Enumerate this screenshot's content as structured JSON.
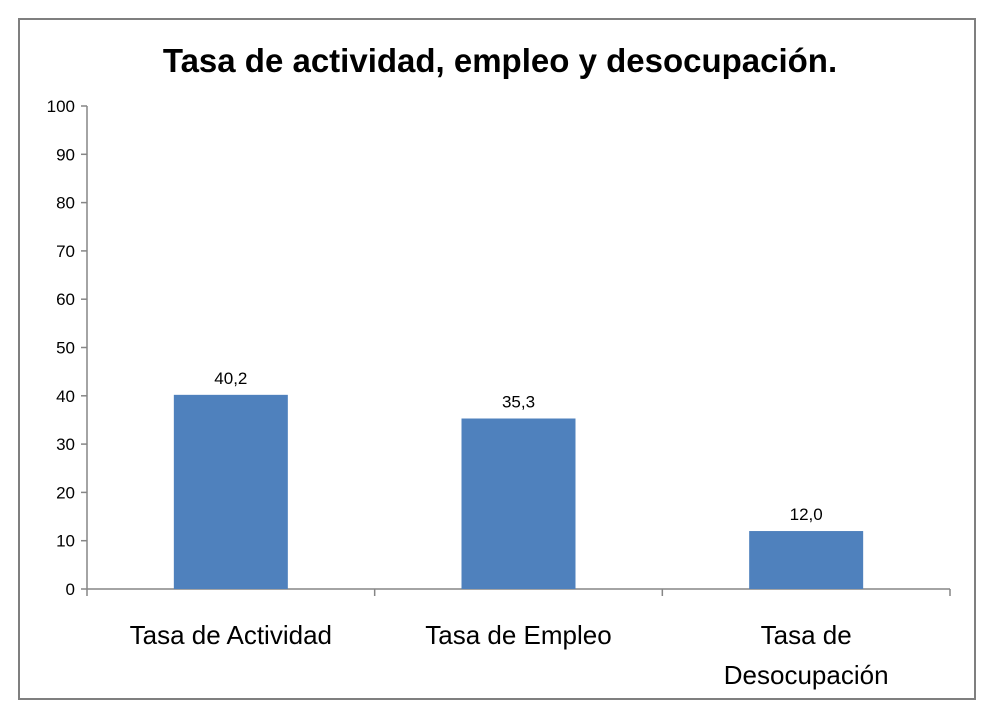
{
  "chart_data": {
    "type": "bar",
    "title": "Tasa de actividad, empleo y desocupación.",
    "categories": [
      [
        "Tasa de Actividad"
      ],
      [
        "Tasa de Empleo"
      ],
      [
        "Tasa de",
        "Desocupación"
      ]
    ],
    "values": [
      40.2,
      35.3,
      12.0
    ],
    "data_labels": [
      "40,2",
      "35,3",
      "12,0"
    ],
    "ylim": [
      0,
      100
    ],
    "yticks": [
      0,
      10,
      20,
      30,
      40,
      50,
      60,
      70,
      80,
      90,
      100
    ],
    "xlabel": "",
    "ylabel": "",
    "grid": false,
    "legend": "none",
    "bar_color": "#4f81bd"
  }
}
